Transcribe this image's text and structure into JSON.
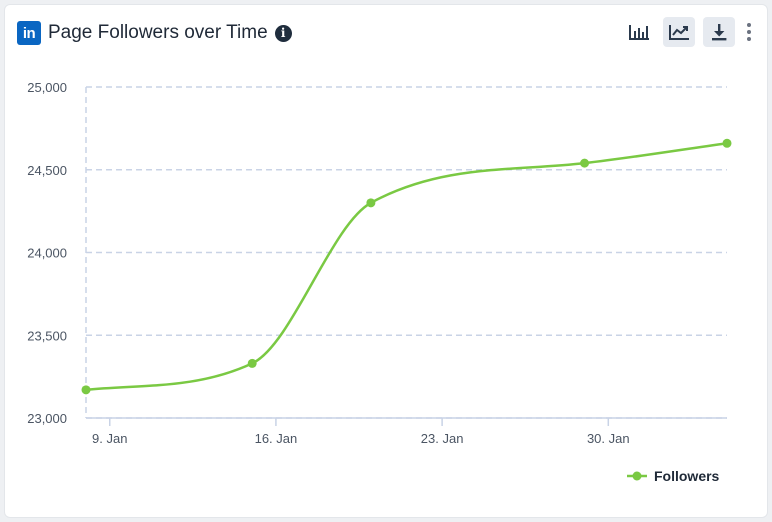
{
  "header": {
    "logo_text": "in",
    "title": "Page Followers over Time",
    "info_symbol": "i"
  },
  "toolbar": {
    "bar_chart_icon": "bar-chart-icon",
    "line_chart_icon": "line-chart-icon",
    "download_icon": "download-icon",
    "more_icon": "more-vertical-icon"
  },
  "colors": {
    "series": "#7ac943",
    "grid": "#c9d3e6",
    "brand": "#0a66c2"
  },
  "chart_data": {
    "type": "line",
    "title": "Page Followers over Time",
    "xlabel": "",
    "ylabel": "",
    "ylim": [
      23000,
      25000
    ],
    "yticks": [
      "23,000",
      "23,500",
      "24,000",
      "24,500",
      "25,000"
    ],
    "ytick_values": [
      23000,
      23500,
      24000,
      24500,
      25000
    ],
    "xticks": [
      "9. Jan",
      "16. Jan",
      "23. Jan",
      "30. Jan"
    ],
    "xtick_values": [
      "2022-01-09",
      "2022-01-16",
      "2022-01-23",
      "2022-01-30"
    ],
    "xlim": [
      "2022-01-08",
      "2022-02-04"
    ],
    "grid": true,
    "legend_position": "bottom-right",
    "series": [
      {
        "name": "Followers",
        "x": [
          "2022-01-08",
          "2022-01-15",
          "2022-01-20",
          "2022-01-29",
          "2022-02-04"
        ],
        "values": [
          23170,
          23330,
          24300,
          24540,
          24660
        ]
      }
    ]
  }
}
